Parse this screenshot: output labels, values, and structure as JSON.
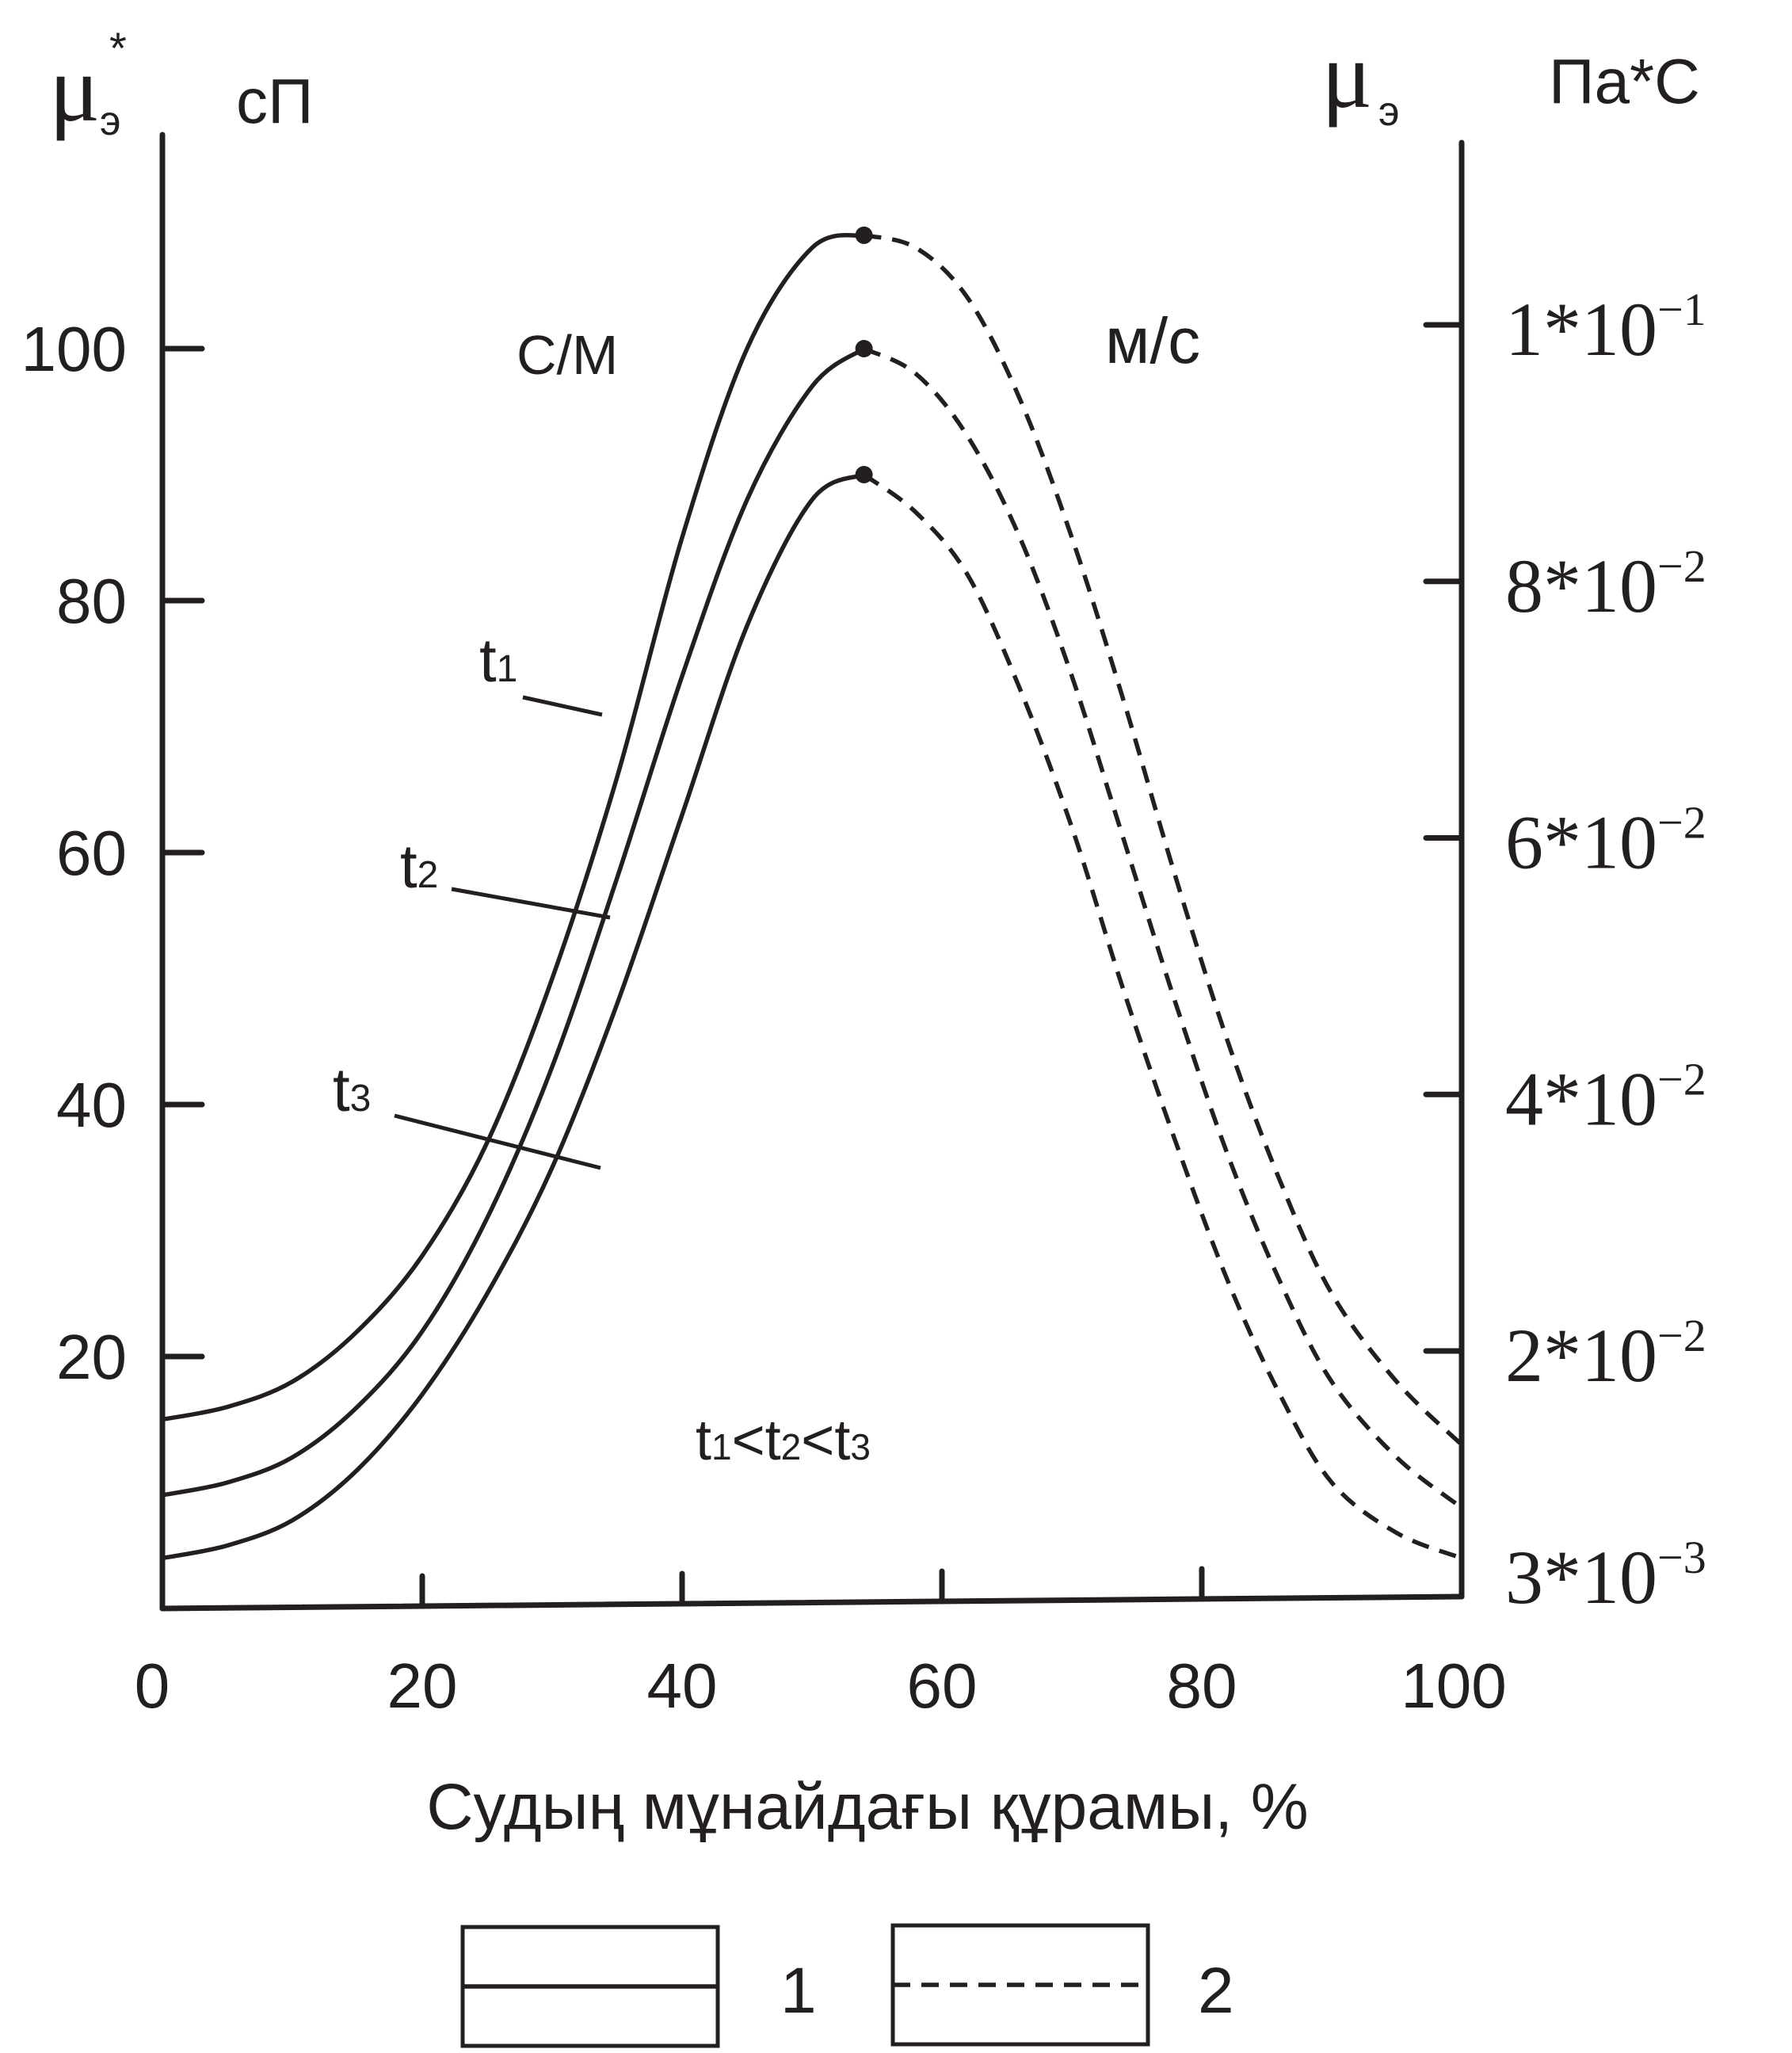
{
  "chart_data": {
    "type": "line",
    "xlabel": "Судың мұнайдағы құрамы, %",
    "xlim": [
      0,
      100
    ],
    "x_ticks": [
      "0",
      "20",
      "40",
      "60",
      "80",
      "100"
    ],
    "left_axis": {
      "symbol": "μ",
      "subscript": "э",
      "superscript": "*",
      "unit": "сП",
      "ylim": [
        0,
        120
      ],
      "ticks": [
        "20",
        "40",
        "60",
        "80",
        "100"
      ]
    },
    "right_axis": {
      "symbol": "μ",
      "subscript": "э",
      "unit": "Па*С",
      "ticks": [
        {
          "mantissa": "3",
          "exponent": "−3"
        },
        {
          "mantissa": "2",
          "exponent": "−2"
        },
        {
          "mantissa": "4",
          "exponent": "−2"
        },
        {
          "mantissa": "6",
          "exponent": "−2"
        },
        {
          "mantissa": "8",
          "exponent": "−2"
        },
        {
          "mantissa": "1",
          "exponent": "−1"
        }
      ],
      "tick_values": [
        0.003,
        0.02,
        0.04,
        0.06,
        0.08,
        0.1
      ]
    },
    "region_labels": {
      "left": "С/М",
      "right": "м/с"
    },
    "condition": {
      "base": "t",
      "subscripts": [
        "1",
        "2",
        "3"
      ]
    },
    "series": [
      {
        "name": "t1",
        "sub": "1",
        "peak_x": 54,
        "x": [
          0,
          5,
          10,
          15,
          20,
          25,
          30,
          35,
          40,
          45,
          50,
          54
        ],
        "y": [
          15,
          16,
          18,
          22,
          28,
          37,
          50,
          66,
          85,
          100,
          108,
          109
        ],
        "dashed_x": [
          54,
          58,
          62,
          66,
          70,
          74,
          78,
          82,
          86,
          90,
          95,
          100
        ],
        "dashed_y": [
          109,
          108,
          104,
          96,
          85,
          72,
          58,
          45,
          34,
          25,
          18,
          13
        ]
      },
      {
        "name": "t2",
        "sub": "2",
        "peak_x": 54,
        "x": [
          0,
          5,
          10,
          15,
          20,
          25,
          30,
          35,
          40,
          45,
          50,
          54
        ],
        "y": [
          9,
          10,
          12,
          16,
          22,
          31,
          43,
          58,
          74,
          88,
          97,
          100
        ],
        "dashed_x": [
          54,
          58,
          62,
          66,
          70,
          74,
          78,
          82,
          86,
          90,
          95,
          100
        ],
        "dashed_y": [
          100,
          98,
          93,
          85,
          74,
          61,
          48,
          36,
          26,
          18,
          12,
          8
        ]
      },
      {
        "name": "t3",
        "sub": "3",
        "peak_x": 54,
        "x": [
          0,
          5,
          10,
          15,
          20,
          25,
          30,
          35,
          40,
          45,
          50,
          54
        ],
        "y": [
          4,
          5,
          7,
          11,
          17,
          25,
          35,
          48,
          63,
          78,
          88,
          90
        ],
        "dashed_x": [
          54,
          58,
          62,
          66,
          70,
          74,
          78,
          82,
          86,
          90,
          95,
          100
        ],
        "dashed_y": [
          90,
          87,
          82,
          73,
          62,
          49,
          37,
          26,
          17,
          10,
          6,
          4
        ]
      }
    ],
    "legend": [
      {
        "label": "1",
        "style": "solid"
      },
      {
        "label": "2",
        "style": "dashed"
      }
    ],
    "grid": false
  }
}
